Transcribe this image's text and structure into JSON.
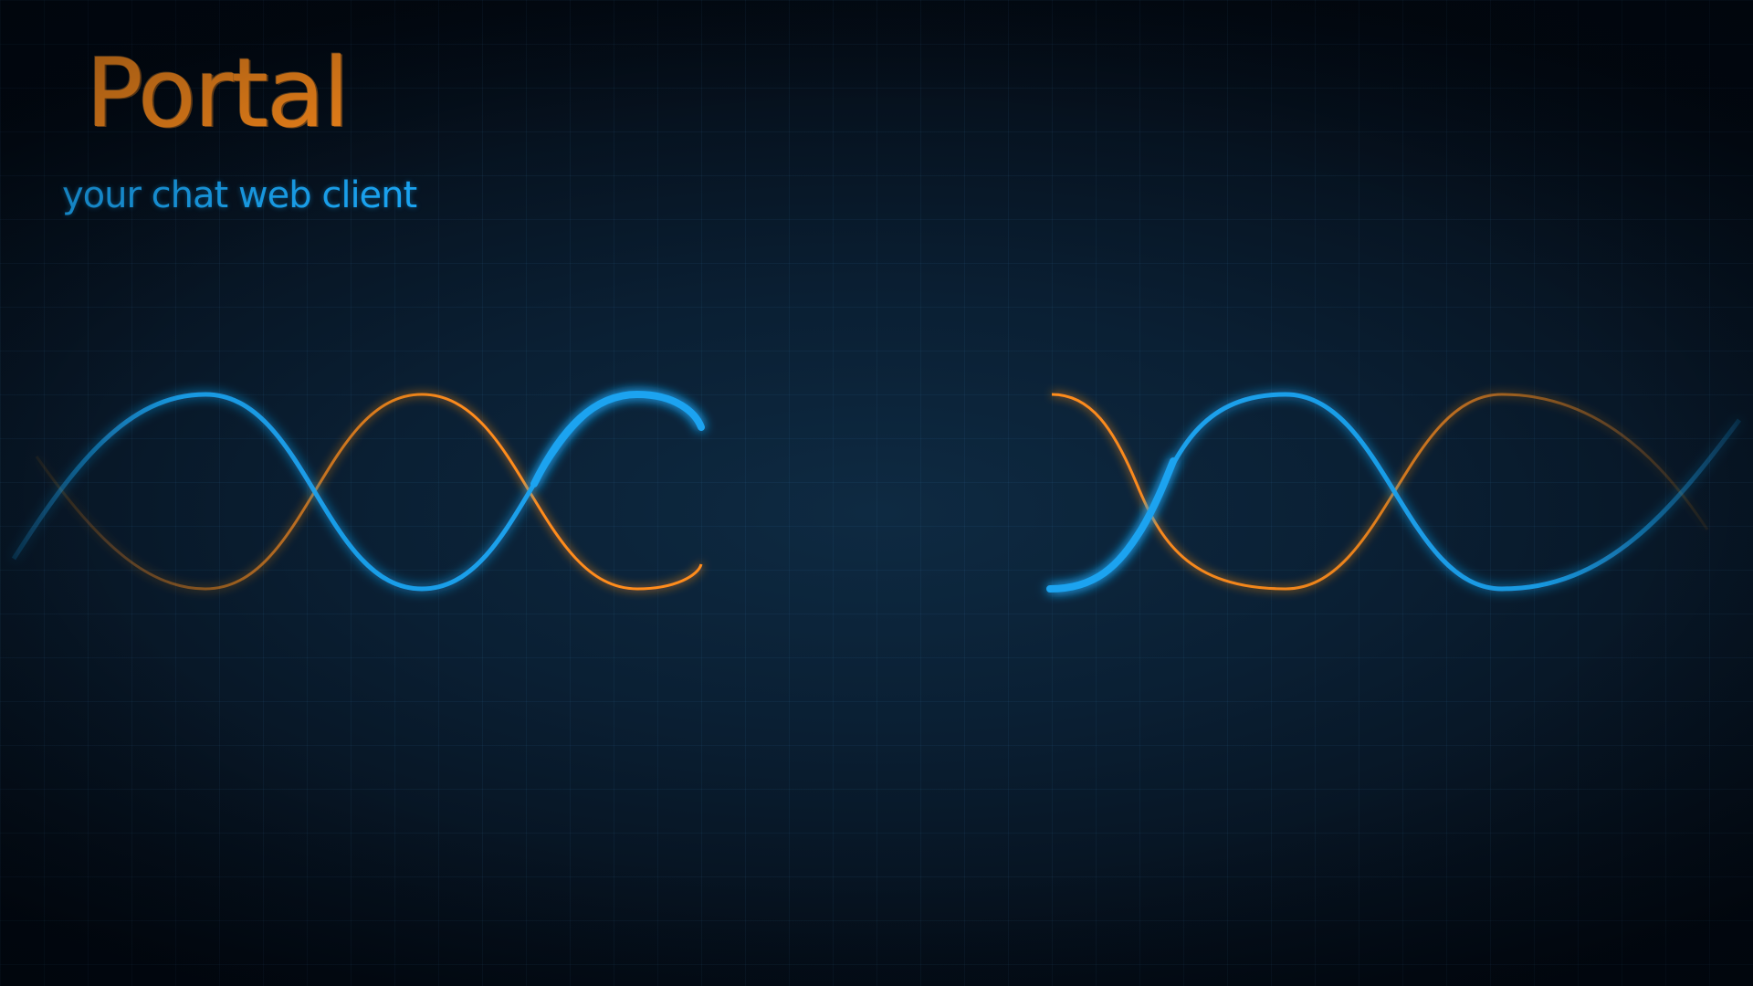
{
  "app": {
    "title": "Portal",
    "tagline": "your chat web client"
  },
  "colors": {
    "background": "#06121f",
    "orange": "#ff8c1a",
    "blue": "#1aa3f0"
  },
  "decoration": {
    "icon": "portal-waves-graphic"
  }
}
